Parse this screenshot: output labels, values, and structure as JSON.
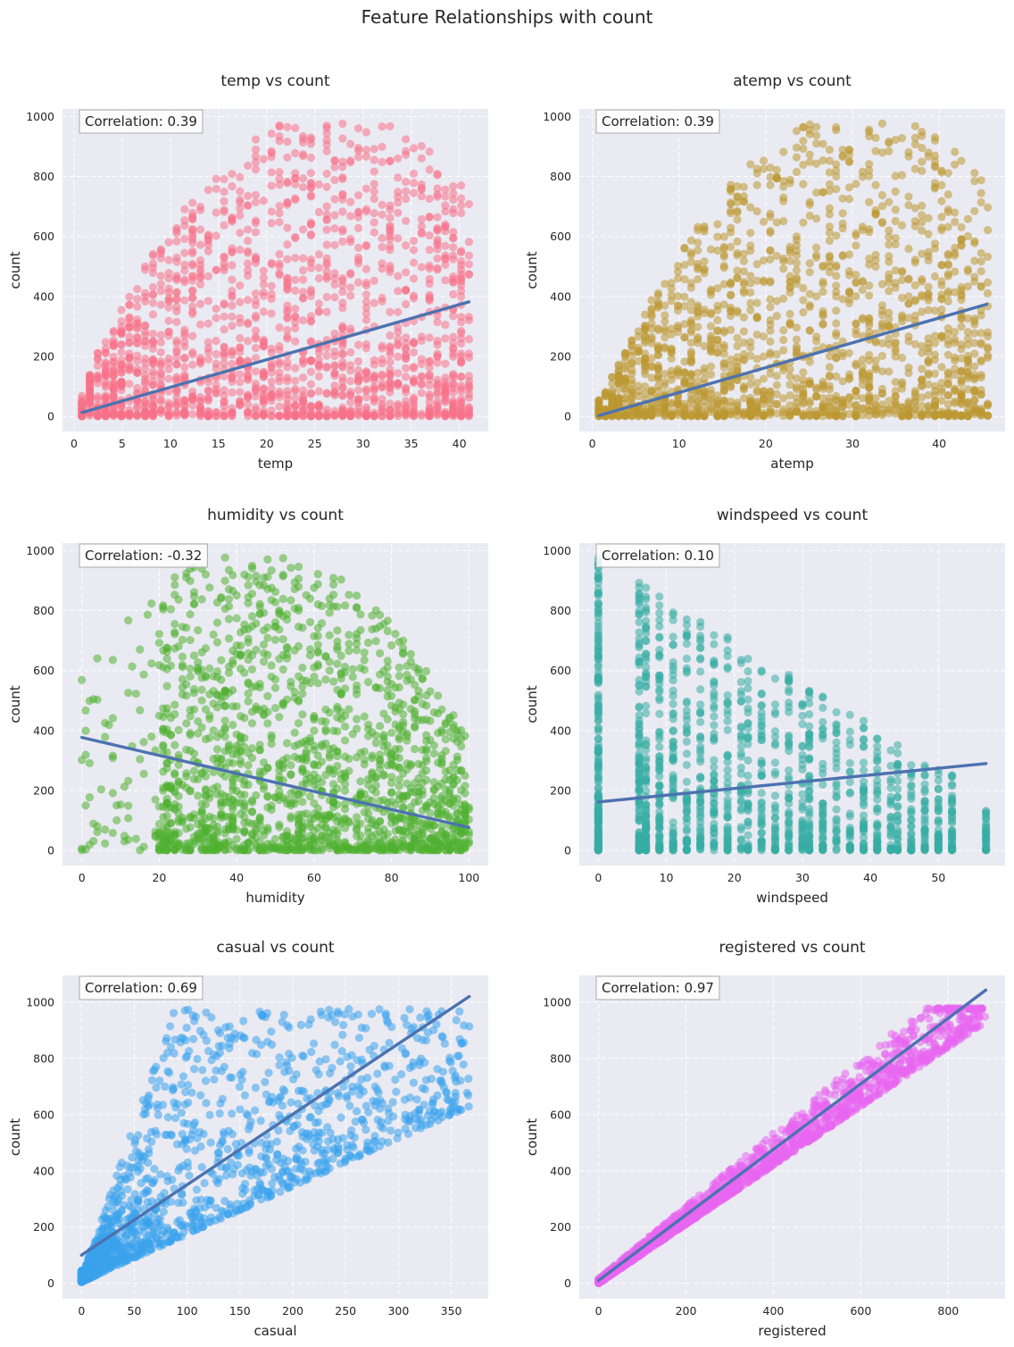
{
  "figure": {
    "suptitle": "Feature Relationships with count",
    "background": "#eaeaf2",
    "grid": true,
    "regression_color": "#4c72b0"
  },
  "chart_data": [
    {
      "type": "scatter",
      "title": "temp vs count",
      "xlabel": "temp",
      "ylabel": "count",
      "correlation_label": "Correlation: 0.39",
      "color": "#f77189",
      "xlim": [
        -1.2,
        43.0
      ],
      "ylim": [
        -50,
        1025
      ],
      "xticks": [
        0,
        5,
        10,
        15,
        20,
        25,
        30,
        35,
        40
      ],
      "yticks": [
        0,
        200,
        400,
        600,
        800,
        1000
      ],
      "regression": {
        "x": [
          0.82,
          41.0
        ],
        "y": [
          13,
          382
        ]
      },
      "point_cloud": {
        "x_range": [
          0.82,
          41.0
        ],
        "peak_x": 27,
        "y_max": 977,
        "x_step": 0.82
      }
    },
    {
      "type": "scatter",
      "title": "atemp vs count",
      "xlabel": "atemp",
      "ylabel": "count",
      "correlation_label": "Correlation: 0.39",
      "color": "#bb9832",
      "xlim": [
        -1.5,
        47.6
      ],
      "ylim": [
        -50,
        1025
      ],
      "xticks": [
        0,
        10,
        20,
        30,
        40
      ],
      "yticks": [
        0,
        200,
        400,
        600,
        800,
        1000
      ],
      "regression": {
        "x": [
          0.76,
          45.5
        ],
        "y": [
          3,
          374
        ]
      },
      "point_cloud": {
        "x_range": [
          0.76,
          45.5
        ],
        "peak_x": 31,
        "y_max": 977,
        "x_step": 0.76
      }
    },
    {
      "type": "scatter",
      "title": "humidity vs count",
      "xlabel": "humidity",
      "ylabel": "count",
      "correlation_label": "Correlation: -0.32",
      "color": "#50b131",
      "xlim": [
        -5,
        105
      ],
      "ylim": [
        -50,
        1025
      ],
      "xticks": [
        0,
        20,
        40,
        60,
        80,
        100
      ],
      "yticks": [
        0,
        200,
        400,
        600,
        800,
        1000
      ],
      "regression": {
        "x": [
          0,
          100
        ],
        "y": [
          377,
          77
        ]
      },
      "point_cloud": {
        "x_range": [
          0,
          100
        ],
        "peak_x": 45,
        "y_max": 977,
        "x_step": 1
      }
    },
    {
      "type": "scatter",
      "title": "windspeed vs count",
      "xlabel": "windspeed",
      "ylabel": "count",
      "correlation_label": "Correlation: 0.10",
      "color": "#36ada4",
      "xlim": [
        -2.8,
        59.8
      ],
      "ylim": [
        -50,
        1025
      ],
      "xticks": [
        0,
        10,
        20,
        30,
        40,
        50
      ],
      "yticks": [
        0,
        200,
        400,
        600,
        800,
        1000
      ],
      "regression": {
        "x": [
          0,
          57
        ],
        "y": [
          162,
          290
        ]
      },
      "point_cloud": {
        "x_values": [
          0,
          6,
          7,
          8.98,
          11,
          12.998,
          15,
          16.998,
          19,
          20.998,
          22,
          23.999,
          26,
          27.999,
          30,
          31.009,
          32.998,
          35,
          36.998,
          39,
          40.998,
          43,
          43.999,
          46,
          47.998,
          50.002,
          51.998,
          56.997
        ],
        "y_max": 977
      }
    },
    {
      "type": "scatter",
      "title": "casual vs count",
      "xlabel": "casual",
      "ylabel": "count",
      "correlation_label": "Correlation: 0.69",
      "color": "#3ba3ec",
      "xlim": [
        -18,
        385
      ],
      "ylim": [
        -55,
        1095
      ],
      "xticks": [
        0,
        50,
        100,
        150,
        200,
        250,
        300,
        350
      ],
      "yticks": [
        0,
        200,
        400,
        600,
        800,
        1000
      ],
      "regression": {
        "x": [
          0,
          367
        ],
        "y": [
          100,
          1020
        ]
      },
      "point_cloud": {
        "x_range": [
          0,
          367
        ],
        "y_max": 977
      }
    },
    {
      "type": "scatter",
      "title": "registered vs count",
      "xlabel": "registered",
      "ylabel": "count",
      "correlation_label": "Correlation: 0.97",
      "color": "#e866f0",
      "xlim": [
        -44,
        930
      ],
      "ylim": [
        -55,
        1095
      ],
      "xticks": [
        0,
        200,
        400,
        600,
        800
      ],
      "yticks": [
        0,
        200,
        400,
        600,
        800,
        1000
      ],
      "regression": {
        "x": [
          0,
          886
        ],
        "y": [
          10,
          1043
        ]
      },
      "point_cloud": {
        "x_range": [
          0,
          886
        ],
        "y_max": 977
      }
    }
  ]
}
